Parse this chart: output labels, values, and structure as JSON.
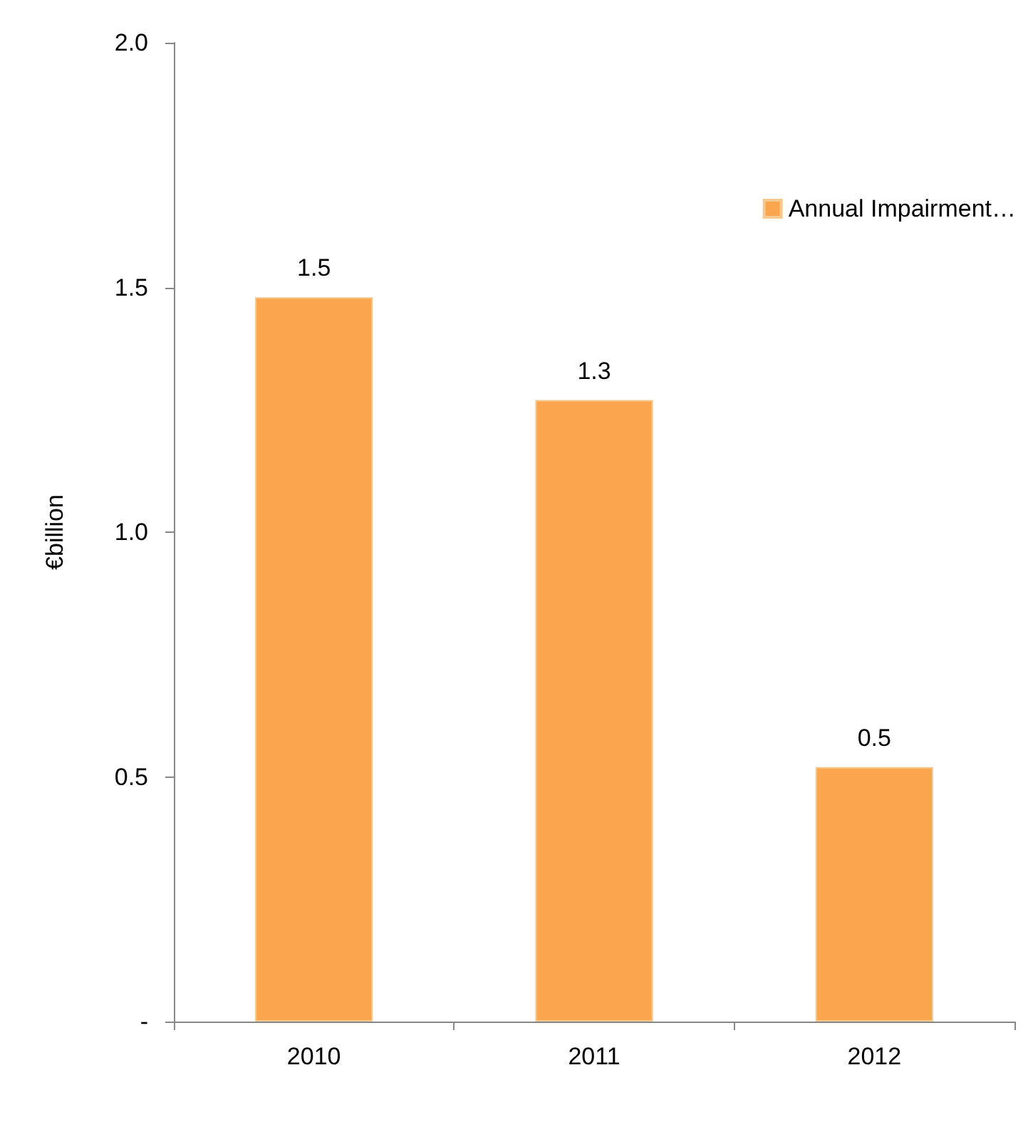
{
  "chart_data": {
    "type": "bar",
    "ylabel": "€billion",
    "categories": [
      "2010",
      "2011",
      "2012"
    ],
    "series": [
      {
        "name": "Annual Impairment…",
        "color": "#fba54f",
        "values": [
          1.48,
          1.27,
          0.52
        ],
        "value_labels": [
          "1.5",
          "1.3",
          "0.5"
        ]
      }
    ],
    "ylim": [
      0,
      2
    ],
    "yticks": [
      {
        "value": 0,
        "label": "-"
      },
      {
        "value": 0.5,
        "label": "0.5"
      },
      {
        "value": 1,
        "label": "1.0"
      },
      {
        "value": 1.5,
        "label": "1.5"
      },
      {
        "value": 2,
        "label": "2.0"
      }
    ],
    "grid": false,
    "legend": "top right"
  }
}
